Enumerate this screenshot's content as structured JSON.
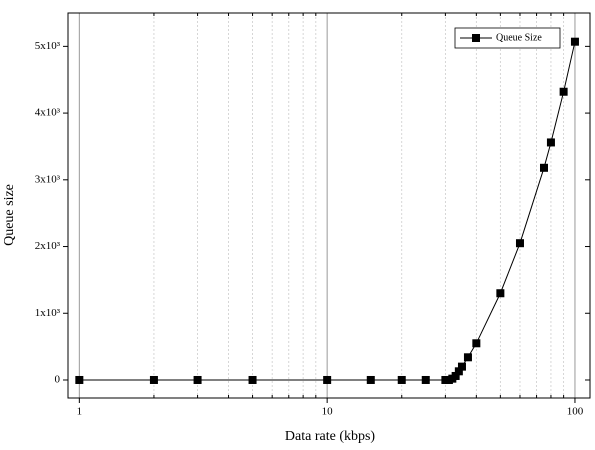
{
  "chart_data": {
    "type": "line",
    "xlabel": "Data rate (kbps)",
    "ylabel": "Queue size",
    "x": [
      1,
      2,
      3,
      5,
      10,
      15,
      20,
      25,
      30,
      31,
      32,
      33,
      34,
      35,
      37,
      40,
      50,
      60,
      75,
      80,
      90,
      100
    ],
    "series": [
      {
        "name": "Queue Size",
        "color": "#000000",
        "values": [
          0,
          0,
          0,
          0,
          0,
          0,
          0,
          0,
          0,
          0,
          20,
          60,
          130,
          200,
          340,
          550,
          1300,
          2050,
          3180,
          3560,
          4320,
          5070
        ]
      }
    ],
    "xscale": "log",
    "xlim": [
      0.9,
      115
    ],
    "xticks": [
      1,
      10,
      100
    ],
    "xminorticks": [
      2,
      3,
      4,
      5,
      6,
      7,
      8,
      9,
      20,
      30,
      40,
      50,
      60,
      70,
      80,
      90
    ],
    "ylim": [
      -270,
      5500
    ],
    "yticks": [
      0,
      {
        "value": 1000,
        "label": "1x10³"
      },
      {
        "value": 2000,
        "label": "2x10³"
      },
      {
        "value": 3000,
        "label": "3x10³"
      },
      {
        "value": 4000,
        "label": "4x10³"
      },
      {
        "value": 5000,
        "label": "5x10³"
      }
    ],
    "grid": true,
    "legend": "upper right"
  }
}
